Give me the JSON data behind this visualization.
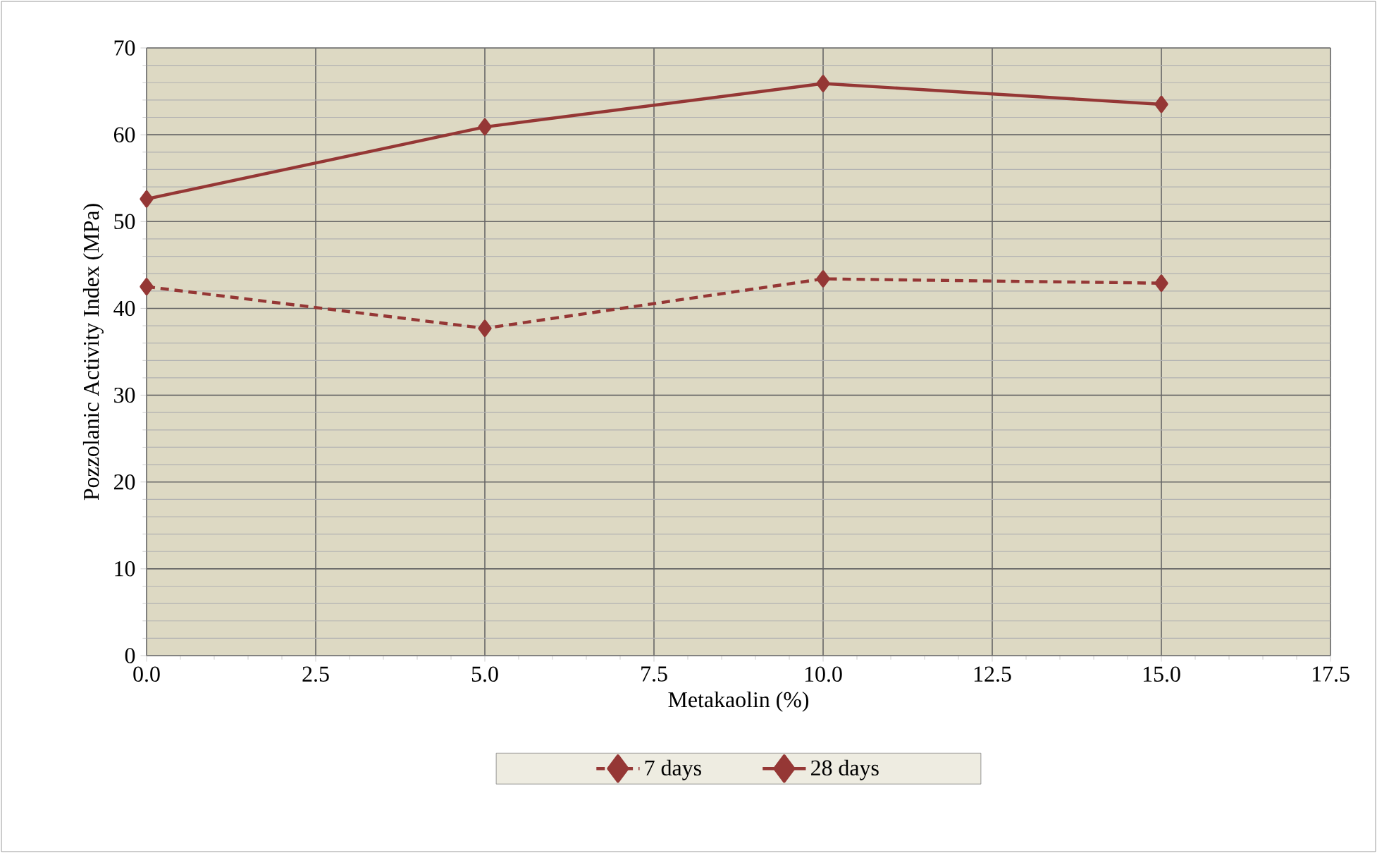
{
  "chart_data": {
    "type": "line",
    "xlabel": "Metakaolin (%)",
    "ylabel": "Pozzolanic Activity Index (MPa)",
    "x": [
      0,
      5,
      10,
      15
    ],
    "series": [
      {
        "name": "7 days",
        "color": "#953735",
        "line_style": "dashed",
        "values": [
          42.5,
          37.7,
          43.4,
          42.9
        ]
      },
      {
        "name": "28 days",
        "color": "#953735",
        "line_style": "solid",
        "values": [
          52.6,
          60.9,
          65.9,
          63.5
        ]
      }
    ],
    "xlim": [
      0,
      17.5
    ],
    "xticks": [
      {
        "value": 0,
        "label": "0.0"
      },
      {
        "value": 2.5,
        "label": "2.5"
      },
      {
        "value": 5,
        "label": "5.0"
      },
      {
        "value": 7.5,
        "label": "7.5"
      },
      {
        "value": 10,
        "label": "10.0"
      },
      {
        "value": 12.5,
        "label": "12.5"
      },
      {
        "value": 15,
        "label": "15.0"
      },
      {
        "value": 17.5,
        "label": "17.5"
      }
    ],
    "ylim": [
      0,
      70
    ],
    "yticks": [
      0,
      10,
      20,
      30,
      40,
      50,
      60,
      70
    ],
    "grid": true,
    "legend": "bottom",
    "marker": "diamond"
  }
}
